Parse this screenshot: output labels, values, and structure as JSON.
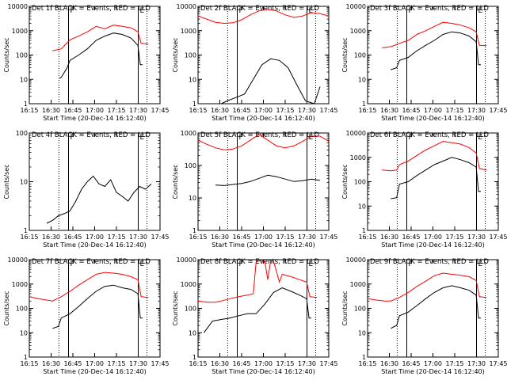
{
  "chart_data": [
    {
      "type": "line",
      "title": "Det 1f BLACK = Events, RED = LLD",
      "xlabel": "Start Time (20-Dec-14 16:12:40)",
      "ylabel": "Counts/sec",
      "y_scale": "log",
      "ylim": [
        1,
        10000
      ],
      "xlim_minutes": [
        15,
        60
      ],
      "yticks": [
        "1",
        "10",
        "100",
        "1000",
        "10000"
      ],
      "xticks": [
        "16:15",
        "16:30",
        "16:45",
        "17:00",
        "17:15",
        "17:30",
        "17:45"
      ],
      "markers": [
        {
          "label": "F",
          "x": 28.5,
          "style": "solid"
        },
        {
          "label": "E",
          "x": 52.5,
          "style": "solid"
        }
      ],
      "dotted_lines": [
        25.2,
        55.5
      ],
      "series": [
        {
          "color": "#ff0000",
          "x": [
            23,
            26,
            29,
            32,
            35,
            38,
            41,
            44,
            47,
            50,
            52.4,
            53.5,
            56
          ],
          "y": [
            150,
            180,
            420,
            600,
            900,
            1500,
            1200,
            1700,
            1500,
            1300,
            900,
            300,
            280
          ]
        },
        {
          "color": "#000000",
          "x": [
            25.4,
            26,
            28,
            29,
            32,
            35,
            38,
            41,
            44,
            47,
            50,
            52.4,
            53.2,
            54
          ],
          "y": [
            11,
            12,
            30,
            60,
            100,
            180,
            400,
            600,
            800,
            700,
            500,
            250,
            40,
            40
          ]
        }
      ]
    },
    {
      "type": "line",
      "title": "Det 2f BLACK = Events, RED = LLD",
      "xlabel": "Start Time (20-Dec-14 16:12:40)",
      "ylabel": "Counts/sec",
      "y_scale": "log",
      "ylim": [
        1,
        10000
      ],
      "xlim_minutes": [
        15,
        60
      ],
      "yticks": [
        "1",
        "10",
        "100",
        "1000",
        "10000"
      ],
      "xticks": [
        "16:15",
        "16:30",
        "16:45",
        "17:00",
        "17:15",
        "17:30",
        "17:45"
      ],
      "markers": [
        {
          "label": "F",
          "x": 28.5,
          "style": "solid"
        },
        {
          "label": "E",
          "x": 52.5,
          "style": "solid"
        }
      ],
      "dotted_lines": [
        25.2,
        55.5
      ],
      "series": [
        {
          "color": "#ff0000",
          "x": [
            15,
            18,
            21,
            24,
            27,
            30,
            33,
            36,
            39,
            42,
            45,
            48,
            51,
            54,
            57,
            60
          ],
          "y": [
            4000,
            3000,
            2200,
            2000,
            2100,
            2800,
            4500,
            6500,
            7500,
            6500,
            4500,
            3500,
            4000,
            5500,
            5000,
            4000
          ]
        },
        {
          "color": "#000000",
          "x": [
            23,
            25,
            28,
            31,
            34,
            37,
            40,
            43,
            46,
            49,
            52,
            55,
            57
          ],
          "y": [
            1,
            1.3,
            1.8,
            2.5,
            10,
            40,
            70,
            60,
            30,
            6,
            1.3,
            1,
            5
          ]
        }
      ]
    },
    {
      "type": "line",
      "title": "Det 3f BLACK = Events, RED = LLD",
      "xlabel": "Start Time (20-Dec-14 16:12:40)",
      "ylabel": "Counts/sec",
      "y_scale": "log",
      "ylim": [
        1,
        10000
      ],
      "xlim_minutes": [
        15,
        60
      ],
      "yticks": [
        "1",
        "10",
        "100",
        "1000",
        "10000"
      ],
      "xticks": [
        "16:15",
        "16:30",
        "16:45",
        "17:00",
        "17:15",
        "17:30",
        "17:45"
      ],
      "markers": [
        {
          "label": "F",
          "x": 28.5,
          "style": "solid"
        },
        {
          "label": "E",
          "x": 52.5,
          "style": "solid"
        }
      ],
      "dotted_lines": [
        25.2,
        55.5
      ],
      "series": [
        {
          "color": "#ff0000",
          "x": [
            20,
            23,
            26,
            29,
            32,
            35,
            38,
            41,
            44,
            47,
            50,
            52.4,
            53.5,
            56
          ],
          "y": [
            200,
            220,
            300,
            400,
            700,
            1000,
            1500,
            2200,
            2000,
            1700,
            1300,
            900,
            250,
            240
          ]
        },
        {
          "color": "#000000",
          "x": [
            23,
            25,
            26,
            29,
            32,
            35,
            38,
            41,
            44,
            47,
            50,
            52.4,
            53.2,
            54
          ],
          "y": [
            25,
            30,
            60,
            80,
            150,
            250,
            400,
            700,
            900,
            800,
            600,
            350,
            40,
            40
          ]
        }
      ]
    },
    {
      "type": "line",
      "title": "Det 4f BLACK = Events, RED = LLD",
      "xlabel": "Start Time (20-Dec-14 16:12:40)",
      "ylabel": "Counts/sec",
      "y_scale": "log",
      "ylim": [
        1,
        100
      ],
      "xlim_minutes": [
        15,
        60
      ],
      "yticks": [
        "1",
        "10",
        "100"
      ],
      "xticks": [
        "16:15",
        "16:30",
        "16:45",
        "17:00",
        "17:15",
        "17:30",
        "17:45"
      ],
      "markers": [
        {
          "label": "F",
          "x": 28.5,
          "style": "solid"
        },
        {
          "label": "E",
          "x": 52.5,
          "style": "solid"
        }
      ],
      "dotted_lines": [
        25.2,
        55.5
      ],
      "series": [
        {
          "color": "#000000",
          "x": [
            21,
            23,
            25,
            27,
            29,
            31,
            33,
            35,
            37,
            39,
            41,
            43,
            45,
            47,
            49,
            51,
            53,
            55,
            57
          ],
          "y": [
            1.4,
            1.6,
            2,
            2.2,
            2.5,
            4,
            7,
            10,
            13,
            9,
            8,
            11,
            6,
            5,
            4,
            6,
            8,
            7,
            9
          ]
        }
      ]
    },
    {
      "type": "line",
      "title": "Det 5f BLACK = Events, RED = LLD",
      "xlabel": "Start Time (20-Dec-14 16:12:40)",
      "ylabel": "Counts/sec",
      "y_scale": "log",
      "ylim": [
        1,
        1000
      ],
      "xlim_minutes": [
        15,
        60
      ],
      "yticks": [
        "1",
        "10",
        "100",
        "1000"
      ],
      "xticks": [
        "16:15",
        "16:30",
        "16:45",
        "17:00",
        "17:15",
        "17:30",
        "17:45"
      ],
      "markers": [
        {
          "label": "F",
          "x": 28.5,
          "style": "solid"
        },
        {
          "label": "E",
          "x": 52.5,
          "style": "solid"
        }
      ],
      "dotted_lines": [
        25.2,
        55.5
      ],
      "series": [
        {
          "color": "#ff0000",
          "x": [
            15,
            18,
            21,
            24,
            27,
            30,
            33,
            36,
            39,
            42,
            45,
            48,
            51,
            54,
            57,
            60
          ],
          "y": [
            600,
            450,
            350,
            300,
            320,
            400,
            600,
            900,
            600,
            400,
            350,
            400,
            550,
            800,
            800,
            550
          ]
        },
        {
          "color": "#000000",
          "x": [
            21,
            24,
            27,
            30,
            33,
            36,
            39,
            42,
            45,
            48,
            51,
            54,
            57
          ],
          "y": [
            25,
            24,
            26,
            28,
            32,
            40,
            50,
            45,
            38,
            32,
            34,
            38,
            35
          ]
        }
      ]
    },
    {
      "type": "line",
      "title": "Det 6f BLACK = Events, RED = LLD",
      "xlabel": "Start Time (20-Dec-14 16:12:40)",
      "ylabel": "Counts/sec",
      "y_scale": "log",
      "ylim": [
        1,
        10000
      ],
      "xlim_minutes": [
        15,
        60
      ],
      "yticks": [
        "1",
        "10",
        "100",
        "1000",
        "10000"
      ],
      "xticks": [
        "16:15",
        "16:30",
        "16:45",
        "17:00",
        "17:15",
        "17:30",
        "17:45"
      ],
      "markers": [
        {
          "label": "F",
          "x": 28.5,
          "style": "solid"
        },
        {
          "label": "E",
          "x": 52.5,
          "style": "solid"
        }
      ],
      "dotted_lines": [
        25.2,
        55.5
      ],
      "series": [
        {
          "color": "#ff0000",
          "x": [
            20,
            23,
            25,
            26,
            29,
            32,
            35,
            38,
            41,
            44,
            47,
            50,
            52.4,
            53.5,
            56
          ],
          "y": [
            300,
            280,
            300,
            500,
            700,
            1200,
            2000,
            3000,
            4500,
            4000,
            3500,
            2500,
            1500,
            350,
            300
          ]
        },
        {
          "color": "#000000",
          "x": [
            23,
            25,
            26,
            29,
            32,
            35,
            38,
            41,
            44,
            47,
            50,
            52.4,
            53.2,
            54
          ],
          "y": [
            20,
            22,
            80,
            100,
            180,
            300,
            500,
            700,
            1000,
            800,
            600,
            400,
            40,
            40
          ]
        }
      ]
    },
    {
      "type": "line",
      "title": "Det 7f BLACK = Events, RED = LLD",
      "xlabel": "Start Time (20-Dec-14 16:12:40)",
      "ylabel": "Counts/sec",
      "y_scale": "log",
      "ylim": [
        1,
        10000
      ],
      "xlim_minutes": [
        15,
        60
      ],
      "yticks": [
        "1",
        "10",
        "100",
        "1000",
        "10000"
      ],
      "xticks": [
        "16:15",
        "16:30",
        "16:45",
        "17:00",
        "17:15",
        "17:30",
        "17:45"
      ],
      "markers": [
        {
          "label": "F",
          "x": 28.5,
          "style": "solid"
        },
        {
          "label": "E",
          "x": 52.5,
          "style": "solid"
        }
      ],
      "dotted_lines": [
        25.2,
        55.5
      ],
      "series": [
        {
          "color": "#ff0000",
          "x": [
            15,
            18,
            21,
            23,
            26,
            29,
            32,
            35,
            38,
            41,
            44,
            47,
            50,
            52.4,
            53.5,
            56
          ],
          "y": [
            300,
            250,
            220,
            200,
            300,
            500,
            900,
            1500,
            2500,
            3000,
            2800,
            2500,
            2000,
            1500,
            300,
            280
          ]
        },
        {
          "color": "#000000",
          "x": [
            23,
            25,
            26,
            29,
            32,
            35,
            38,
            41,
            44,
            47,
            50,
            52.4,
            53.2,
            54
          ],
          "y": [
            15,
            18,
            40,
            60,
            120,
            250,
            500,
            800,
            900,
            700,
            600,
            400,
            40,
            40
          ]
        }
      ]
    },
    {
      "type": "line",
      "title": "Det 8f BLACK = Events, RED = LLD",
      "xlabel": "Start Time (20-Dec-14 16:12:40)",
      "ylabel": "Counts/sec",
      "y_scale": "log",
      "ylim": [
        1,
        10000
      ],
      "xlim_minutes": [
        15,
        60
      ],
      "yticks": [
        "1",
        "10",
        "100",
        "1000",
        "10000"
      ],
      "xticks": [
        "16:15",
        "16:30",
        "16:45",
        "17:00",
        "17:15",
        "17:30",
        "17:45"
      ],
      "markers": [
        {
          "label": "F",
          "x": 28.5,
          "style": "solid"
        },
        {
          "label": "E",
          "x": 52.5,
          "style": "solid"
        }
      ],
      "dotted_lines": [
        25.2,
        55.5
      ],
      "series": [
        {
          "color": "#ff0000",
          "x": [
            15,
            18,
            21,
            23,
            26,
            29,
            32,
            34,
            35,
            36,
            38,
            39,
            40,
            41,
            43,
            44,
            47,
            50,
            52.4,
            53.5,
            56
          ],
          "y": [
            200,
            180,
            180,
            200,
            250,
            300,
            350,
            400,
            8000,
            9000,
            8500,
            1500,
            9000,
            8800,
            1200,
            2500,
            2000,
            1500,
            1200,
            300,
            280
          ]
        },
        {
          "color": "#000000",
          "x": [
            17,
            20,
            23,
            26,
            29,
            32,
            35,
            38,
            41,
            44,
            47,
            50,
            52.4,
            53.2,
            54
          ],
          "y": [
            10,
            30,
            35,
            40,
            50,
            60,
            60,
            150,
            450,
            700,
            500,
            350,
            250,
            40,
            40
          ]
        }
      ]
    },
    {
      "type": "line",
      "title": "Det 9f BLACK = Events, RED = LLD",
      "xlabel": "Start Time (20-Dec-14 16:12:40)",
      "ylabel": "Counts/sec",
      "y_scale": "log",
      "ylim": [
        1,
        10000
      ],
      "xlim_minutes": [
        15,
        60
      ],
      "yticks": [
        "1",
        "10",
        "100",
        "1000",
        "10000"
      ],
      "xticks": [
        "16:15",
        "16:30",
        "16:45",
        "17:00",
        "17:15",
        "17:30",
        "17:45"
      ],
      "markers": [
        {
          "label": "F",
          "x": 28.5,
          "style": "solid"
        },
        {
          "label": "E",
          "x": 52.5,
          "style": "solid"
        }
      ],
      "dotted_lines": [
        25.2,
        55.5
      ],
      "series": [
        {
          "color": "#ff0000",
          "x": [
            15,
            18,
            21,
            23,
            26,
            29,
            32,
            35,
            38,
            41,
            44,
            47,
            50,
            52.4,
            53.5,
            56
          ],
          "y": [
            250,
            220,
            200,
            200,
            280,
            450,
            800,
            1300,
            2200,
            2800,
            2500,
            2300,
            2000,
            1400,
            300,
            280
          ]
        },
        {
          "color": "#000000",
          "x": [
            23,
            25,
            26,
            29,
            32,
            35,
            38,
            41,
            44,
            47,
            50,
            52.4,
            53.2,
            54
          ],
          "y": [
            15,
            20,
            50,
            70,
            130,
            250,
            450,
            700,
            850,
            700,
            550,
            350,
            40,
            40
          ]
        }
      ]
    }
  ]
}
